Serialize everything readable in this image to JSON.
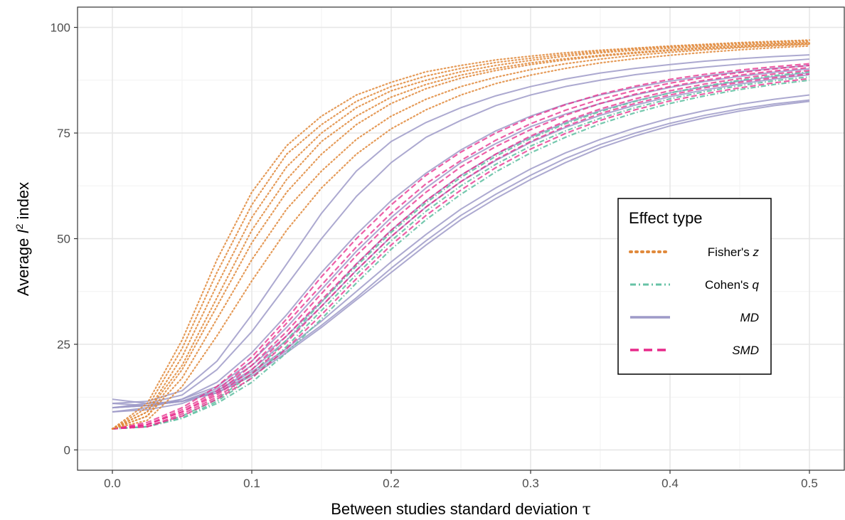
{
  "chart_data": {
    "type": "line",
    "xlabel_text": "Between studies standard deviation ",
    "xlabel_symbol": "τ",
    "ylabel_pre": "Average ",
    "ylabel_var": "I",
    "ylabel_sup": "2",
    "ylabel_post": " index",
    "xlim": [
      -0.025,
      0.525
    ],
    "ylim": [
      -4.8,
      104.8
    ],
    "x_ticks": [
      0,
      0.1,
      0.2,
      0.3,
      0.4,
      0.5
    ],
    "x_tick_labels": [
      "0.0",
      "0.1",
      "0.2",
      "0.3",
      "0.4",
      "0.5"
    ],
    "y_ticks": [
      0,
      25,
      50,
      75,
      100
    ],
    "y_tick_labels": [
      "0",
      "25",
      "50",
      "75",
      "100"
    ],
    "grid": true,
    "legend": {
      "title": "Effect type",
      "position": "right",
      "entries": [
        {
          "label_plain": "Fisher's ",
          "label_italic": "z",
          "style": "dotted",
          "color": "#E08A3C"
        },
        {
          "label_plain": "Cohen's ",
          "label_italic": "q",
          "style": "dotdash",
          "color": "#66C2A5"
        },
        {
          "label_plain": "",
          "label_italic": "MD",
          "style": "solid",
          "color": "#9E9AC8"
        },
        {
          "label_plain": "",
          "label_italic": "SMD",
          "style": "dashed",
          "color": "#E7298A"
        }
      ]
    },
    "x": [
      0,
      0.025,
      0.05,
      0.075,
      0.1,
      0.125,
      0.15,
      0.175,
      0.2,
      0.225,
      0.25,
      0.275,
      0.3,
      0.325,
      0.35,
      0.375,
      0.4,
      0.425,
      0.45,
      0.475,
      0.5
    ],
    "series": [
      {
        "group": "Fisher's z",
        "values": [
          5,
          11,
          26,
          45,
          61,
          72,
          79,
          84,
          87,
          89.5,
          91,
          92.3,
          93.2,
          94,
          94.6,
          95.1,
          95.6,
          96,
          96.4,
          96.7,
          97
        ]
      },
      {
        "group": "Fisher's z",
        "values": [
          5,
          10,
          24,
          42,
          58,
          70,
          77,
          82.5,
          86,
          88.5,
          90.3,
          91.7,
          92.7,
          93.6,
          94.3,
          94.9,
          95.4,
          95.8,
          96.2,
          96.5,
          96.8
        ]
      },
      {
        "group": "Fisher's z",
        "values": [
          5,
          9,
          22,
          39,
          55,
          67,
          75,
          81,
          85,
          87.5,
          89.5,
          91,
          92.2,
          93.2,
          94,
          94.6,
          95.1,
          95.5,
          95.9,
          96.2,
          96.5
        ]
      },
      {
        "group": "Fisher's z",
        "values": [
          5,
          9,
          20,
          36,
          52,
          64,
          73,
          79,
          83.5,
          86.5,
          88.7,
          90.3,
          91.6,
          92.6,
          93.4,
          94.1,
          94.7,
          95.2,
          95.6,
          96,
          96.3
        ]
      },
      {
        "group": "Fisher's z",
        "values": [
          5,
          8,
          19,
          34,
          49,
          61,
          70,
          77,
          82,
          85.5,
          88,
          89.8,
          91.2,
          92.3,
          93.2,
          93.9,
          94.5,
          95,
          95.4,
          95.8,
          96.1
        ]
      },
      {
        "group": "Fisher's z",
        "values": [
          5,
          8,
          17,
          31,
          45,
          57,
          66,
          73.5,
          79,
          83,
          86,
          88.2,
          90,
          91.4,
          92.5,
          93.4,
          94.1,
          94.7,
          95.2,
          95.6,
          96
        ]
      },
      {
        "group": "Fisher's z",
        "values": [
          5,
          7,
          15,
          27,
          40,
          52,
          62,
          70,
          76,
          80.5,
          84,
          86.7,
          88.7,
          90.3,
          91.6,
          92.6,
          93.4,
          94.1,
          94.7,
          95.2,
          95.6
        ]
      },
      {
        "group": "MD",
        "values": [
          10,
          11,
          13,
          19,
          28,
          39,
          50,
          60,
          68,
          74,
          78,
          81.5,
          84,
          86,
          87.5,
          88.8,
          89.8,
          90.6,
          91.3,
          91.9,
          92.5
        ]
      },
      {
        "group": "MD",
        "values": [
          11,
          11.5,
          14,
          21,
          32,
          44,
          56,
          66,
          73,
          77.5,
          81,
          83.8,
          86,
          87.8,
          89.2,
          90.3,
          91.2,
          92,
          92.6,
          93.1,
          93.5
        ]
      },
      {
        "group": "MD",
        "values": [
          9,
          10,
          12,
          16,
          23,
          32,
          42,
          51,
          59,
          65.5,
          71,
          75.5,
          79,
          81.8,
          84,
          85.8,
          87.3,
          88.5,
          89.5,
          90.3,
          91
        ]
      },
      {
        "group": "MD",
        "values": [
          10,
          10.5,
          12,
          15,
          21,
          29,
          38,
          47,
          55,
          62,
          68,
          72.5,
          76.5,
          79.5,
          82,
          84,
          85.8,
          87.2,
          88.4,
          89.4,
          90.2
        ]
      },
      {
        "group": "MD",
        "values": [
          10,
          10.5,
          11.5,
          14.5,
          20,
          27,
          35,
          44,
          52,
          59,
          65,
          70,
          74,
          77.5,
          80.3,
          82.6,
          84.5,
          86,
          87.3,
          88.4,
          89.3
        ]
      },
      {
        "group": "MD",
        "values": [
          9,
          9.5,
          11,
          14,
          19,
          26,
          34,
          42.5,
          50.5,
          57.5,
          63.5,
          68.5,
          72.8,
          76.3,
          79.2,
          81.6,
          83.6,
          85.2,
          86.6,
          87.8,
          88.8
        ]
      },
      {
        "group": "MD",
        "values": [
          10,
          10.5,
          11.5,
          14,
          18.5,
          24,
          30.5,
          37.5,
          44.5,
          51,
          57,
          62,
          66.5,
          70.3,
          73.5,
          76.2,
          78.5,
          80.3,
          81.8,
          83,
          84
        ]
      },
      {
        "group": "MD",
        "values": [
          12,
          11,
          11.5,
          13.5,
          18,
          23.5,
          29.5,
          36,
          43,
          49.5,
          55.5,
          60.5,
          65,
          69,
          72.3,
          75,
          77.3,
          79.2,
          80.7,
          81.9,
          82.8
        ]
      },
      {
        "group": "MD",
        "values": [
          11,
          10.5,
          11.5,
          13.5,
          17.5,
          23,
          29,
          35.5,
          42,
          48.5,
          54.5,
          59.5,
          64,
          68,
          71.5,
          74.3,
          76.7,
          78.6,
          80.2,
          81.5,
          82.5
        ]
      },
      {
        "group": "SMD",
        "values": [
          5,
          6.5,
          10,
          15,
          22,
          31,
          41,
          50,
          58,
          65,
          70.5,
          75,
          78.7,
          81.7,
          84.2,
          86.1,
          87.7,
          88.9,
          89.9,
          90.7,
          91.4
        ]
      },
      {
        "group": "SMD",
        "values": [
          5,
          6,
          9.5,
          14,
          21,
          30,
          39,
          48,
          56,
          63,
          68.5,
          73.3,
          77.2,
          80.4,
          83,
          85.1,
          86.8,
          88.2,
          89.3,
          90.2,
          91
        ]
      },
      {
        "group": "SMD",
        "values": [
          5,
          6,
          9,
          13.5,
          20,
          28,
          37,
          46,
          54,
          61,
          67,
          71.8,
          75.8,
          79.2,
          82,
          84.2,
          86,
          87.5,
          88.7,
          89.7,
          90.5
        ]
      },
      {
        "group": "SMD",
        "values": [
          5,
          6,
          9,
          13,
          19,
          27,
          35.5,
          44,
          52,
          59,
          65,
          70,
          74.3,
          77.8,
          80.7,
          83.1,
          85,
          86.6,
          87.9,
          89,
          89.8
        ]
      },
      {
        "group": "SMD",
        "values": [
          5,
          5.5,
          8.5,
          12.5,
          18,
          25.5,
          34,
          42.5,
          50.5,
          57.5,
          63.5,
          68.7,
          73,
          76.6,
          79.6,
          82,
          84,
          85.7,
          87,
          88.1,
          89
        ]
      },
      {
        "group": "SMD",
        "values": [
          5,
          5.5,
          8,
          12,
          17,
          24,
          32,
          40.5,
          48.5,
          55.5,
          61.5,
          66.8,
          71.2,
          74.9,
          78,
          80.5,
          82.6,
          84.3,
          85.7,
          86.9,
          87.9
        ]
      },
      {
        "group": "Cohen's q",
        "values": [
          5,
          5.5,
          7.5,
          11,
          16,
          23,
          31,
          39.5,
          47.5,
          54.5,
          60.5,
          65.8,
          70.3,
          74,
          77.2,
          79.8,
          82,
          83.8,
          85.3,
          86.5,
          87.5
        ]
      },
      {
        "group": "Cohen's q",
        "values": [
          5,
          5.5,
          7.5,
          11.5,
          17,
          24.5,
          33,
          41.5,
          49.5,
          56.5,
          62.5,
          67.6,
          71.9,
          75.5,
          78.5,
          81,
          83.1,
          84.8,
          86.2,
          87.4,
          88.3
        ]
      },
      {
        "group": "Cohen's q",
        "values": [
          5,
          5.5,
          8,
          12,
          18,
          26,
          35,
          43.5,
          51.5,
          58.5,
          64.5,
          69.5,
          73.7,
          77.2,
          80.1,
          82.5,
          84.5,
          86.1,
          87.5,
          88.6,
          89.5
        ]
      }
    ]
  }
}
